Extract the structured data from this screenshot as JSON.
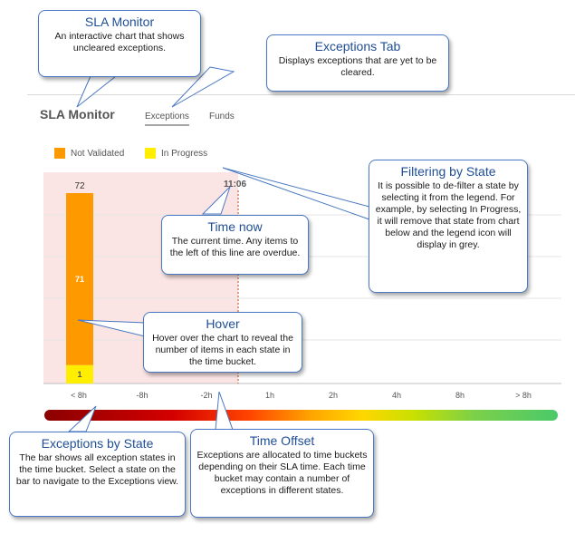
{
  "header": {
    "title": "SLA Monitor",
    "tabs": [
      {
        "label": "Exceptions",
        "active": true
      },
      {
        "label": "Funds",
        "active": false
      }
    ]
  },
  "legend": {
    "items": [
      {
        "label": "Not Validated",
        "color": "#ff9900"
      },
      {
        "label": "In Progress",
        "color": "#ffee00"
      }
    ]
  },
  "chart": {
    "bar_total_label": "72",
    "segments": [
      {
        "state": "Not Validated",
        "value": 71,
        "label": "71",
        "color": "#ff9900"
      },
      {
        "state": "In Progress",
        "value": 1,
        "label": "1",
        "color": "#ffee00"
      }
    ],
    "now_label": "11:06",
    "x_labels": [
      "< 8h",
      "-8h",
      "-2h",
      "1h",
      "2h",
      "4h",
      "8h",
      "> 8h"
    ],
    "overdue_shade_color": "#fbe4e4"
  },
  "callouts": {
    "sla_monitor": {
      "title": "SLA Monitor",
      "body": "An interactive chart that shows uncleared exceptions."
    },
    "exceptions_tab": {
      "title": "Exceptions Tab",
      "body": "Displays exceptions that are yet to be cleared."
    },
    "filtering": {
      "title": "Filtering by State",
      "body": "It is possible to de-filter a state by selecting it from the legend. For example, by selecting In Progress, it will remove that state from chart below and the legend icon will display in grey."
    },
    "time_now": {
      "title": "Time now",
      "body": "The current time. Any items to the left of this line are overdue."
    },
    "hover": {
      "title": "Hover",
      "body": "Hover over the chart to reveal the number of items in each state in the time bucket."
    },
    "exceptions_by_state": {
      "title": "Exceptions by State",
      "body": "The bar shows all exception states in the time bucket. Select a state on the bar to navigate to the Exceptions view."
    },
    "time_offset": {
      "title": "Time Offset",
      "body": "Exceptions are allocated to time buckets depending on their SLA time. Each time bucket may contain a number of exceptions in different states."
    }
  }
}
